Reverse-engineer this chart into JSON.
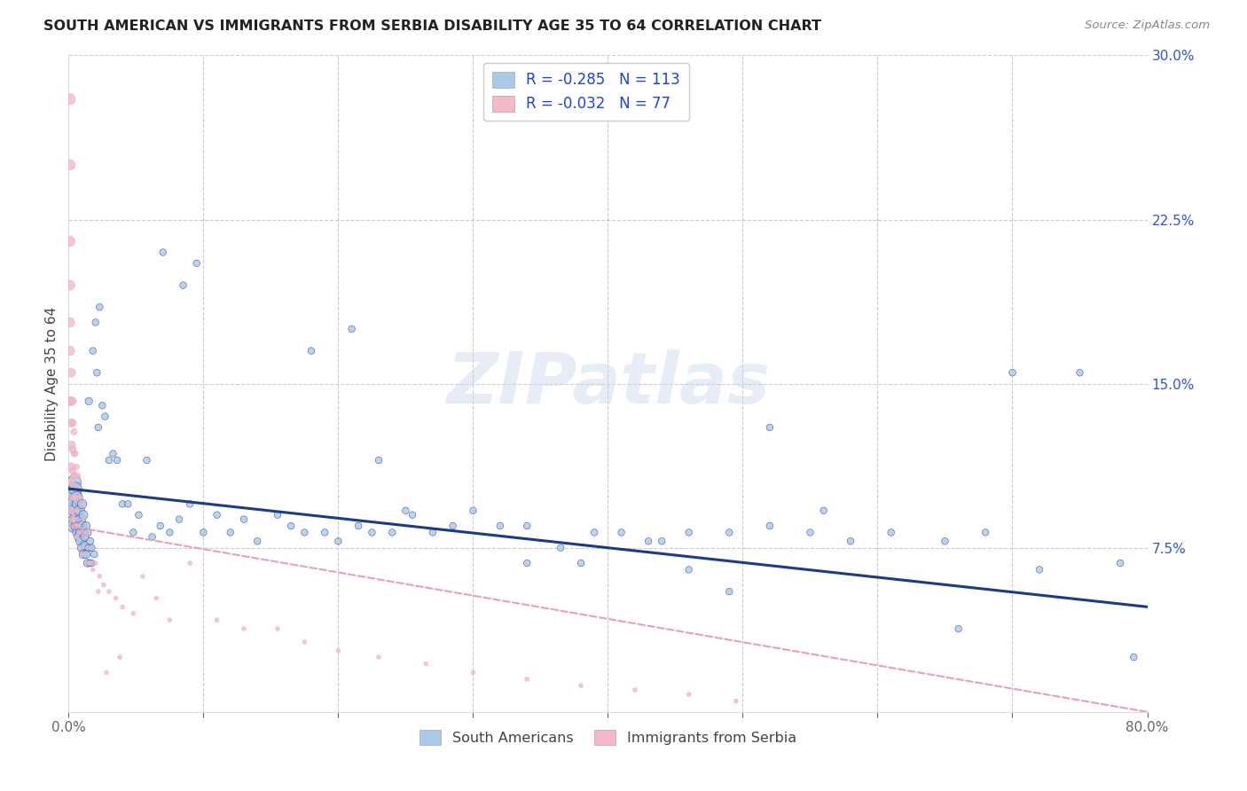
{
  "title": "SOUTH AMERICAN VS IMMIGRANTS FROM SERBIA DISABILITY AGE 35 TO 64 CORRELATION CHART",
  "source": "Source: ZipAtlas.com",
  "ylabel": "Disability Age 35 to 64",
  "legend_label_blue": "South Americans",
  "legend_label_pink": "Immigrants from Serbia",
  "R_blue": -0.285,
  "N_blue": 113,
  "R_pink": -0.032,
  "N_pink": 77,
  "xlim": [
    0,
    0.8
  ],
  "ylim": [
    0,
    0.3
  ],
  "yticks_right": [
    0.075,
    0.15,
    0.225,
    0.3
  ],
  "ytick_labels_right": [
    "7.5%",
    "15.0%",
    "22.5%",
    "30.0%"
  ],
  "color_blue": "#aac8e8",
  "color_pink": "#f4b8c8",
  "line_blue": "#1a3a8c",
  "line_pink": "#e8a0b8",
  "background": "#ffffff",
  "watermark": "ZIPatlas",
  "blue_trend_x0": 0.0,
  "blue_trend_y0": 0.102,
  "blue_trend_x1": 0.8,
  "blue_trend_y1": 0.048,
  "pink_trend_x0": 0.0,
  "pink_trend_y0": 0.085,
  "pink_trend_x1": 0.8,
  "pink_trend_y1": 0.0,
  "blue_x": [
    0.001,
    0.002,
    0.002,
    0.003,
    0.003,
    0.003,
    0.004,
    0.004,
    0.004,
    0.005,
    0.005,
    0.006,
    0.006,
    0.006,
    0.007,
    0.007,
    0.007,
    0.008,
    0.008,
    0.008,
    0.009,
    0.009,
    0.009,
    0.01,
    0.01,
    0.01,
    0.011,
    0.011,
    0.011,
    0.012,
    0.012,
    0.013,
    0.013,
    0.014,
    0.014,
    0.015,
    0.015,
    0.016,
    0.016,
    0.017,
    0.017,
    0.018,
    0.019,
    0.02,
    0.021,
    0.022,
    0.023,
    0.025,
    0.027,
    0.03,
    0.033,
    0.036,
    0.04,
    0.044,
    0.048,
    0.052,
    0.058,
    0.062,
    0.068,
    0.075,
    0.082,
    0.09,
    0.1,
    0.11,
    0.12,
    0.13,
    0.14,
    0.155,
    0.165,
    0.175,
    0.19,
    0.2,
    0.215,
    0.225,
    0.24,
    0.255,
    0.27,
    0.285,
    0.3,
    0.32,
    0.34,
    0.365,
    0.39,
    0.41,
    0.44,
    0.46,
    0.49,
    0.52,
    0.55,
    0.58,
    0.61,
    0.65,
    0.68,
    0.72,
    0.75,
    0.78,
    0.79,
    0.07,
    0.085,
    0.095,
    0.18,
    0.21,
    0.23,
    0.25,
    0.34,
    0.38,
    0.43,
    0.46,
    0.49,
    0.52,
    0.56,
    0.66,
    0.7
  ],
  "blue_y": [
    0.095,
    0.1,
    0.09,
    0.098,
    0.088,
    0.092,
    0.095,
    0.105,
    0.085,
    0.102,
    0.092,
    0.098,
    0.09,
    0.085,
    0.095,
    0.087,
    0.082,
    0.092,
    0.085,
    0.08,
    0.088,
    0.082,
    0.078,
    0.085,
    0.095,
    0.075,
    0.082,
    0.09,
    0.072,
    0.08,
    0.076,
    0.085,
    0.072,
    0.082,
    0.068,
    0.142,
    0.075,
    0.078,
    0.068,
    0.075,
    0.068,
    0.165,
    0.072,
    0.178,
    0.155,
    0.13,
    0.185,
    0.14,
    0.135,
    0.115,
    0.118,
    0.115,
    0.095,
    0.095,
    0.082,
    0.09,
    0.115,
    0.08,
    0.085,
    0.082,
    0.088,
    0.095,
    0.082,
    0.09,
    0.082,
    0.088,
    0.078,
    0.09,
    0.085,
    0.082,
    0.082,
    0.078,
    0.085,
    0.082,
    0.082,
    0.09,
    0.082,
    0.085,
    0.092,
    0.085,
    0.085,
    0.075,
    0.082,
    0.082,
    0.078,
    0.082,
    0.082,
    0.085,
    0.082,
    0.078,
    0.082,
    0.078,
    0.082,
    0.065,
    0.155,
    0.068,
    0.025,
    0.21,
    0.195,
    0.205,
    0.165,
    0.175,
    0.115,
    0.092,
    0.068,
    0.068,
    0.078,
    0.065,
    0.055,
    0.13,
    0.092,
    0.038,
    0.155
  ],
  "blue_sizes": [
    400,
    250,
    200,
    180,
    160,
    150,
    140,
    130,
    120,
    110,
    100,
    95,
    90,
    88,
    85,
    80,
    78,
    75,
    72,
    70,
    68,
    65,
    62,
    60,
    58,
    56,
    54,
    52,
    50,
    48,
    46,
    44,
    42,
    40,
    38,
    36,
    35,
    34,
    33,
    32,
    31,
    30,
    30,
    30,
    30,
    30,
    30,
    30,
    30,
    30,
    30,
    30,
    30,
    30,
    30,
    30,
    30,
    30,
    30,
    30,
    30,
    30,
    30,
    30,
    30,
    30,
    30,
    30,
    30,
    30,
    30,
    30,
    30,
    30,
    30,
    30,
    30,
    30,
    30,
    30,
    30,
    30,
    30,
    30,
    30,
    30,
    30,
    30,
    30,
    30,
    30,
    30,
    30,
    30,
    30,
    30,
    30,
    30,
    30,
    30,
    30,
    30,
    30,
    30,
    30,
    30,
    30,
    30,
    30,
    30,
    30,
    30,
    30
  ],
  "pink_x": [
    0.001,
    0.001,
    0.001,
    0.001,
    0.001,
    0.001,
    0.001,
    0.002,
    0.002,
    0.002,
    0.002,
    0.002,
    0.002,
    0.002,
    0.003,
    0.003,
    0.003,
    0.003,
    0.003,
    0.003,
    0.004,
    0.004,
    0.004,
    0.004,
    0.004,
    0.005,
    0.005,
    0.005,
    0.005,
    0.006,
    0.006,
    0.006,
    0.006,
    0.007,
    0.007,
    0.007,
    0.008,
    0.008,
    0.009,
    0.009,
    0.01,
    0.01,
    0.011,
    0.012,
    0.013,
    0.014,
    0.015,
    0.016,
    0.018,
    0.02,
    0.023,
    0.026,
    0.03,
    0.035,
    0.04,
    0.048,
    0.055,
    0.065,
    0.075,
    0.09,
    0.11,
    0.13,
    0.155,
    0.175,
    0.2,
    0.23,
    0.265,
    0.3,
    0.34,
    0.38,
    0.42,
    0.46,
    0.495,
    0.015,
    0.022,
    0.028,
    0.038
  ],
  "pink_y": [
    0.28,
    0.25,
    0.215,
    0.195,
    0.178,
    0.165,
    0.142,
    0.155,
    0.142,
    0.132,
    0.122,
    0.112,
    0.105,
    0.092,
    0.142,
    0.132,
    0.12,
    0.11,
    0.098,
    0.088,
    0.128,
    0.118,
    0.108,
    0.098,
    0.088,
    0.118,
    0.108,
    0.098,
    0.085,
    0.112,
    0.102,
    0.092,
    0.08,
    0.108,
    0.098,
    0.085,
    0.102,
    0.082,
    0.098,
    0.075,
    0.095,
    0.072,
    0.088,
    0.082,
    0.08,
    0.075,
    0.068,
    0.068,
    0.065,
    0.068,
    0.062,
    0.058,
    0.055,
    0.052,
    0.048,
    0.045,
    0.062,
    0.052,
    0.042,
    0.068,
    0.042,
    0.038,
    0.038,
    0.032,
    0.028,
    0.025,
    0.022,
    0.018,
    0.015,
    0.012,
    0.01,
    0.008,
    0.005,
    0.068,
    0.055,
    0.018,
    0.025
  ],
  "pink_sizes": [
    80,
    75,
    70,
    65,
    60,
    58,
    55,
    52,
    50,
    48,
    46,
    44,
    42,
    40,
    38,
    36,
    34,
    32,
    30,
    28,
    28,
    26,
    25,
    24,
    23,
    22,
    21,
    20,
    19,
    19,
    18,
    17,
    16,
    16,
    15,
    15,
    15,
    14,
    14,
    13,
    13,
    12,
    12,
    12,
    12,
    12,
    12,
    12,
    12,
    12,
    12,
    12,
    12,
    12,
    12,
    12,
    12,
    12,
    12,
    12,
    12,
    12,
    12,
    12,
    12,
    12,
    12,
    12,
    12,
    12,
    12,
    12,
    12,
    12,
    12,
    12,
    12
  ]
}
